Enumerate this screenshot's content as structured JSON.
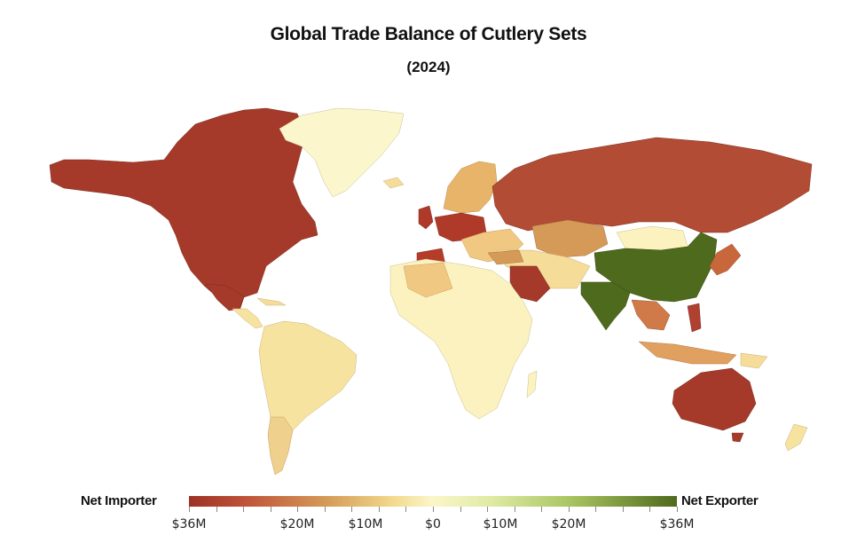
{
  "title": "Global Trade Balance of Cutlery Sets",
  "subtitle": "(2024)",
  "legend": {
    "left_label": "Net Importer",
    "right_label": "Net Exporter",
    "ticks": [
      {
        "label": "$36M",
        "value": -36
      },
      {
        "label": "$20M",
        "value": -20
      },
      {
        "label": "$10M",
        "value": -10
      },
      {
        "label": "$0",
        "value": 0
      },
      {
        "label": "$10M",
        "value": 10
      },
      {
        "label": "$20M",
        "value": 20
      },
      {
        "label": "$36M",
        "value": 36
      }
    ],
    "colors": {
      "importer_strong": "#9c3224",
      "neutral": "#fbf6c9",
      "exporter_strong": "#4e6a1c"
    }
  },
  "map_data": {
    "regions": [
      {
        "name": "North America (USA/Canada)",
        "color": "#a53a2a"
      },
      {
        "name": "Mexico",
        "color": "#a53a2a"
      },
      {
        "name": "Greenland",
        "color": "#fbf6cc"
      },
      {
        "name": "South America",
        "color": "#f7e3a0"
      },
      {
        "name": "Argentina/Chile",
        "color": "#efd08c"
      },
      {
        "name": "Africa",
        "color": "#fbf2c0"
      },
      {
        "name": "Western Europe",
        "color": "#b03a2a"
      },
      {
        "name": "Spain",
        "color": "#b43c28"
      },
      {
        "name": "Northern Europe",
        "color": "#e8b46a"
      },
      {
        "name": "Russia",
        "color": "#b24c34"
      },
      {
        "name": "Kazakhstan",
        "color": "#d69a58"
      },
      {
        "name": "Middle East",
        "color": "#f5dc98"
      },
      {
        "name": "Saudi Arabia",
        "color": "#a53a2a"
      },
      {
        "name": "China",
        "color": "#4e6a1c"
      },
      {
        "name": "India",
        "color": "#4e6a1c"
      },
      {
        "name": "Mongolia",
        "color": "#fbf2c0"
      },
      {
        "name": "Southeast Asia",
        "color": "#cf7a48"
      },
      {
        "name": "Japan",
        "color": "#c8663c"
      },
      {
        "name": "Australia",
        "color": "#a53a2a"
      },
      {
        "name": "New Zealand",
        "color": "#f7e3a0"
      }
    ]
  }
}
